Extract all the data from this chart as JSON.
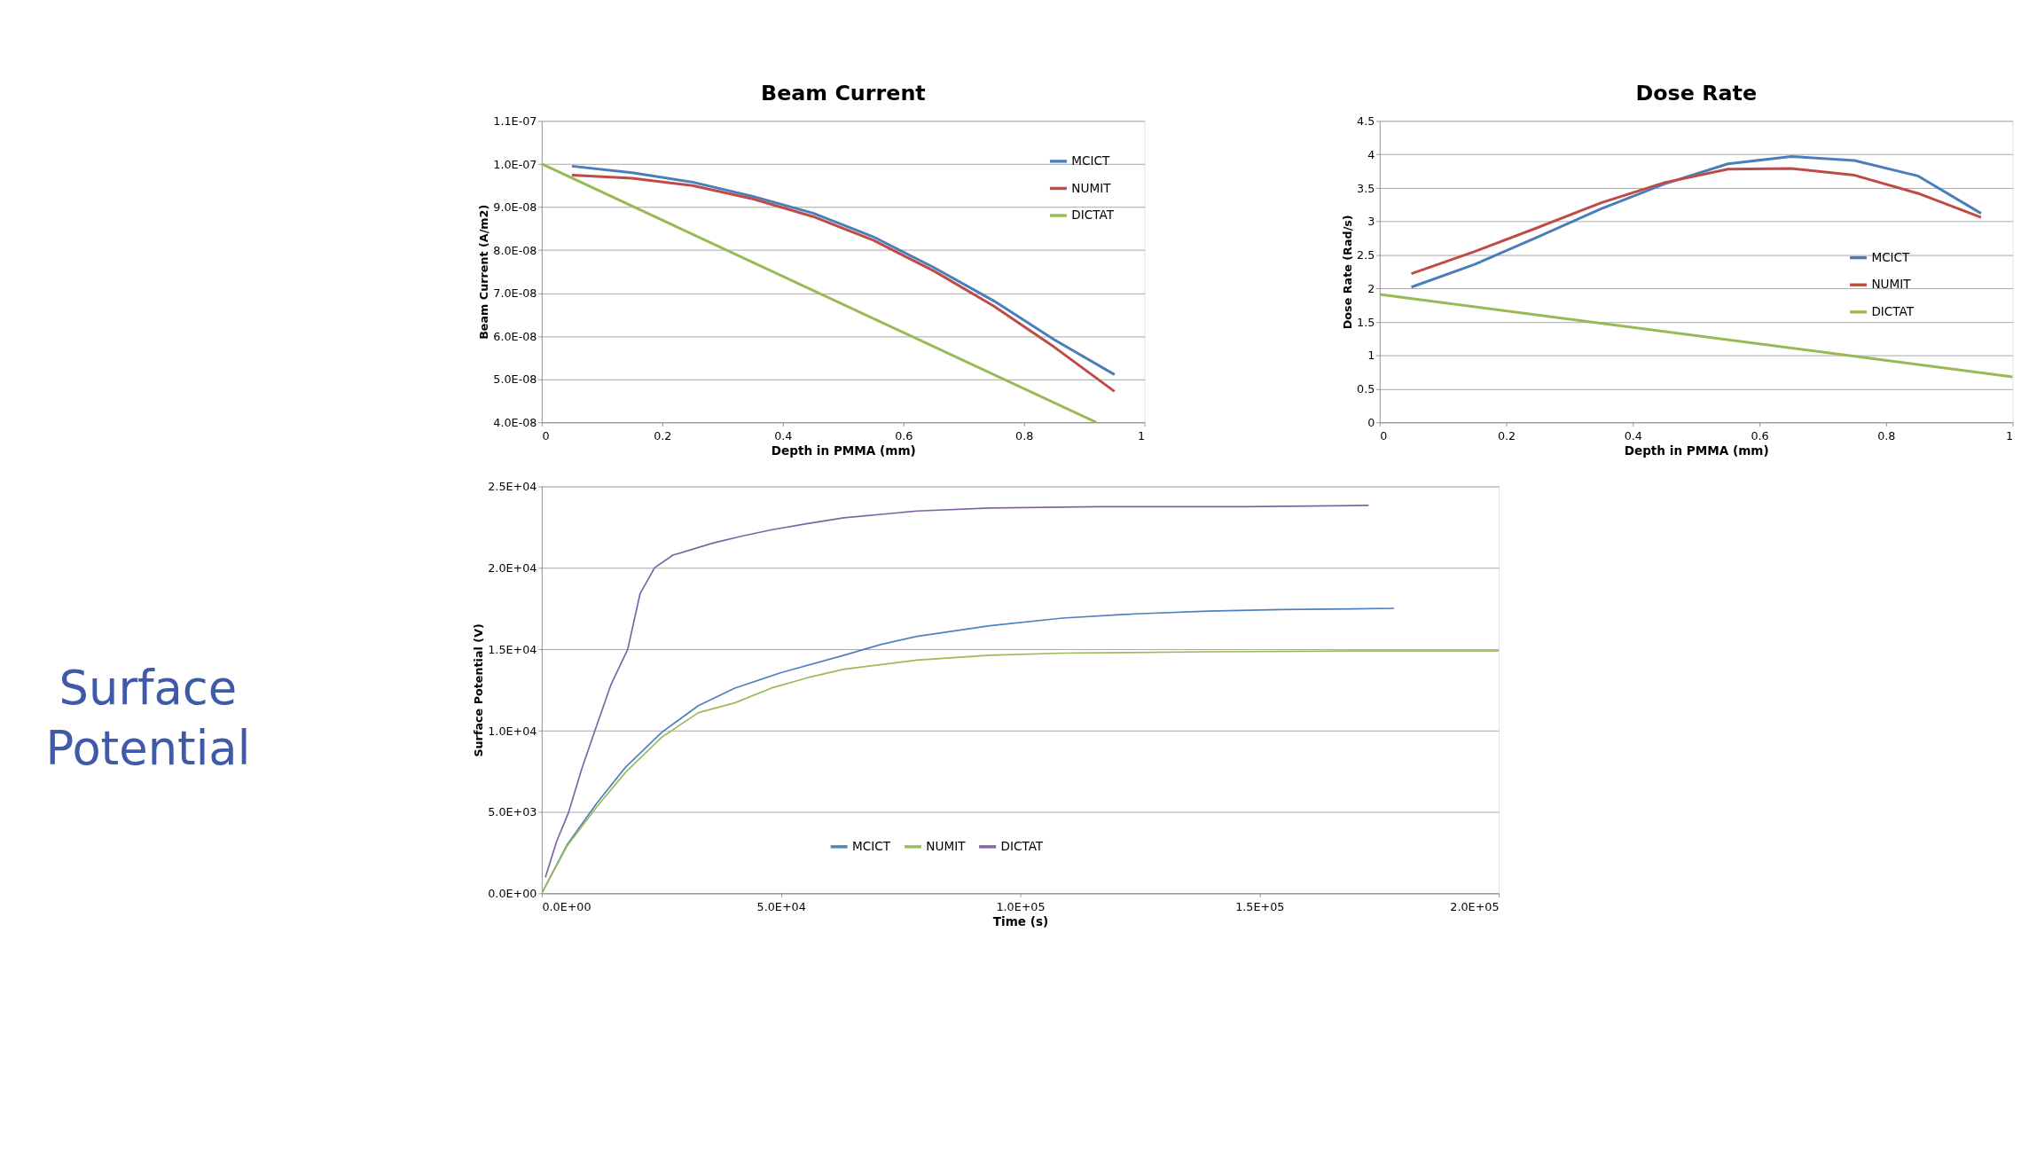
{
  "chart_data": [
    {
      "type": "line",
      "title": "Beam Current",
      "xlabel": "Depth in PMMA (mm)",
      "ylabel": "Beam Current (A/m2)",
      "x": [
        0.05,
        0.15,
        0.25,
        0.35,
        0.45,
        0.55,
        0.65,
        0.75,
        0.85,
        0.95
      ],
      "series": [
        {
          "name": "MCICT",
          "color": "#4a7ebb",
          "values": [
            9.95e-08,
            9.8e-08,
            9.58e-08,
            9.25e-08,
            8.86e-08,
            8.31e-08,
            7.6e-08,
            6.82e-08,
            5.92e-08,
            5.11e-08
          ]
        },
        {
          "name": "NUMIT",
          "color": "#be4b48",
          "values": [
            9.74e-08,
            9.67e-08,
            9.5e-08,
            9.19e-08,
            8.78e-08,
            8.23e-08,
            7.52e-08,
            6.7e-08,
            5.75e-08,
            4.72e-08
          ]
        },
        {
          "name": "DICTAT",
          "color": "#98b954",
          "x": [
            0,
            0.92
          ],
          "values": [
            1e-07,
            4e-08
          ]
        }
      ],
      "xlim": [
        0,
        1
      ],
      "xticks": [
        0,
        0.2,
        0.4,
        0.6,
        0.8,
        1
      ],
      "ylim": [
        4e-08,
        1.1e-07
      ],
      "yticks": [
        {
          "value": 4e-08,
          "label": "4.0E-08"
        },
        {
          "value": 5e-08,
          "label": "5.0E-08"
        },
        {
          "value": 6e-08,
          "label": "6.0E-08"
        },
        {
          "value": 7e-08,
          "label": "7.0E-08"
        },
        {
          "value": 8e-08,
          "label": "8.0E-08"
        },
        {
          "value": 9e-08,
          "label": "9.0E-08"
        },
        {
          "value": 1e-07,
          "label": "1.0E-07"
        },
        {
          "value": 1.1e-07,
          "label": "1.1E-07"
        }
      ],
      "grid": "y",
      "legend": "top right",
      "line_style": "solid",
      "marker": "none"
    },
    {
      "type": "line",
      "title": "Dose Rate",
      "xlabel": "Depth in PMMA (mm)",
      "ylabel": "Dose Rate (Rad/s)",
      "x": [
        0.05,
        0.15,
        0.25,
        0.35,
        0.45,
        0.55,
        0.65,
        0.75,
        0.85,
        0.95
      ],
      "series": [
        {
          "name": "MCICT",
          "color": "#4a7ebb",
          "values": [
            2.02,
            2.36,
            2.77,
            3.19,
            3.56,
            3.86,
            3.97,
            3.91,
            3.68,
            3.12
          ]
        },
        {
          "name": "NUMIT",
          "color": "#be4b48",
          "values": [
            2.22,
            2.55,
            2.91,
            3.28,
            3.58,
            3.78,
            3.79,
            3.69,
            3.42,
            3.06
          ]
        },
        {
          "name": "DICTAT",
          "color": "#98b954",
          "x": [
            0,
            1
          ],
          "values": [
            1.91,
            0.68
          ]
        }
      ],
      "xlim": [
        0,
        1
      ],
      "xticks": [
        0,
        0.2,
        0.4,
        0.6,
        0.8,
        1
      ],
      "ylim": [
        0,
        4.5
      ],
      "yticks": [
        0,
        0.5,
        1,
        1.5,
        2,
        2.5,
        3,
        3.5,
        4,
        4.5
      ],
      "grid": "y",
      "legend": "right",
      "line_style": "solid",
      "marker": "none"
    },
    {
      "type": "line",
      "title": "Surface Potential",
      "xlabel": "Time (s)",
      "ylabel": "Surface Potential (V)",
      "series": [
        {
          "name": "MCICT",
          "color": "#4f81bd",
          "x": [
            0,
            5330,
            11420,
            17500,
            25110,
            32720,
            40330,
            50000,
            63170,
            70780,
            78390,
            93610,
            108800,
            124000,
            139300,
            154500,
            178100
          ],
          "values": [
            0,
            3010,
            5510,
            7750,
            9900,
            11530,
            12610,
            13560,
            14630,
            15280,
            15790,
            16440,
            16910,
            17170,
            17340,
            17430,
            17510
          ]
        },
        {
          "name": "NUMIT",
          "color": "#9bbb59",
          "x": [
            0,
            5330,
            11420,
            17500,
            25110,
            32720,
            40330,
            47950,
            55560,
            63170,
            78390,
            93610,
            108800,
            139300,
            169700,
            200000
          ],
          "values": [
            0,
            2930,
            5290,
            7440,
            9600,
            11100,
            11700,
            12610,
            13250,
            13770,
            14330,
            14630,
            14760,
            14840,
            14890,
            14890
          ]
        },
        {
          "name": "DICTAT",
          "color": "#8064a2",
          "x": [
            760,
            3040,
            5630,
            8370,
            11110,
            14460,
            17960,
            20550,
            23590,
            27400,
            35770,
            41860,
            47950,
            55560,
            63170,
            78390,
            93610,
            116400,
            146900,
            172800
          ],
          "values": [
            990,
            3140,
            5000,
            7660,
            10000,
            12820,
            15000,
            18420,
            20010,
            20780,
            21520,
            21950,
            22330,
            22720,
            23070,
            23490,
            23670,
            23750,
            23750,
            23840
          ]
        }
      ],
      "xlim": [
        0,
        200000
      ],
      "xticks": [
        {
          "value": 0,
          "label": "0.0E+00"
        },
        {
          "value": 50000,
          "label": "5.0E+04"
        },
        {
          "value": 100000,
          "label": "1.0E+05"
        },
        {
          "value": 150000,
          "label": "1.5E+05"
        },
        {
          "value": 200000,
          "label": "2.0E+05"
        }
      ],
      "ylim": [
        0,
        25000
      ],
      "yticks": [
        {
          "value": 0,
          "label": "0.0E+00"
        },
        {
          "value": 5000,
          "label": "5.0E+03"
        },
        {
          "value": 10000,
          "label": "1.0E+04"
        },
        {
          "value": 15000,
          "label": "1.5E+04"
        },
        {
          "value": 20000,
          "label": "2.0E+04"
        },
        {
          "value": 25000,
          "label": "2.5E+04"
        }
      ],
      "grid": "y",
      "legend": "bottom",
      "line_style": "solid",
      "marker": "none"
    }
  ]
}
